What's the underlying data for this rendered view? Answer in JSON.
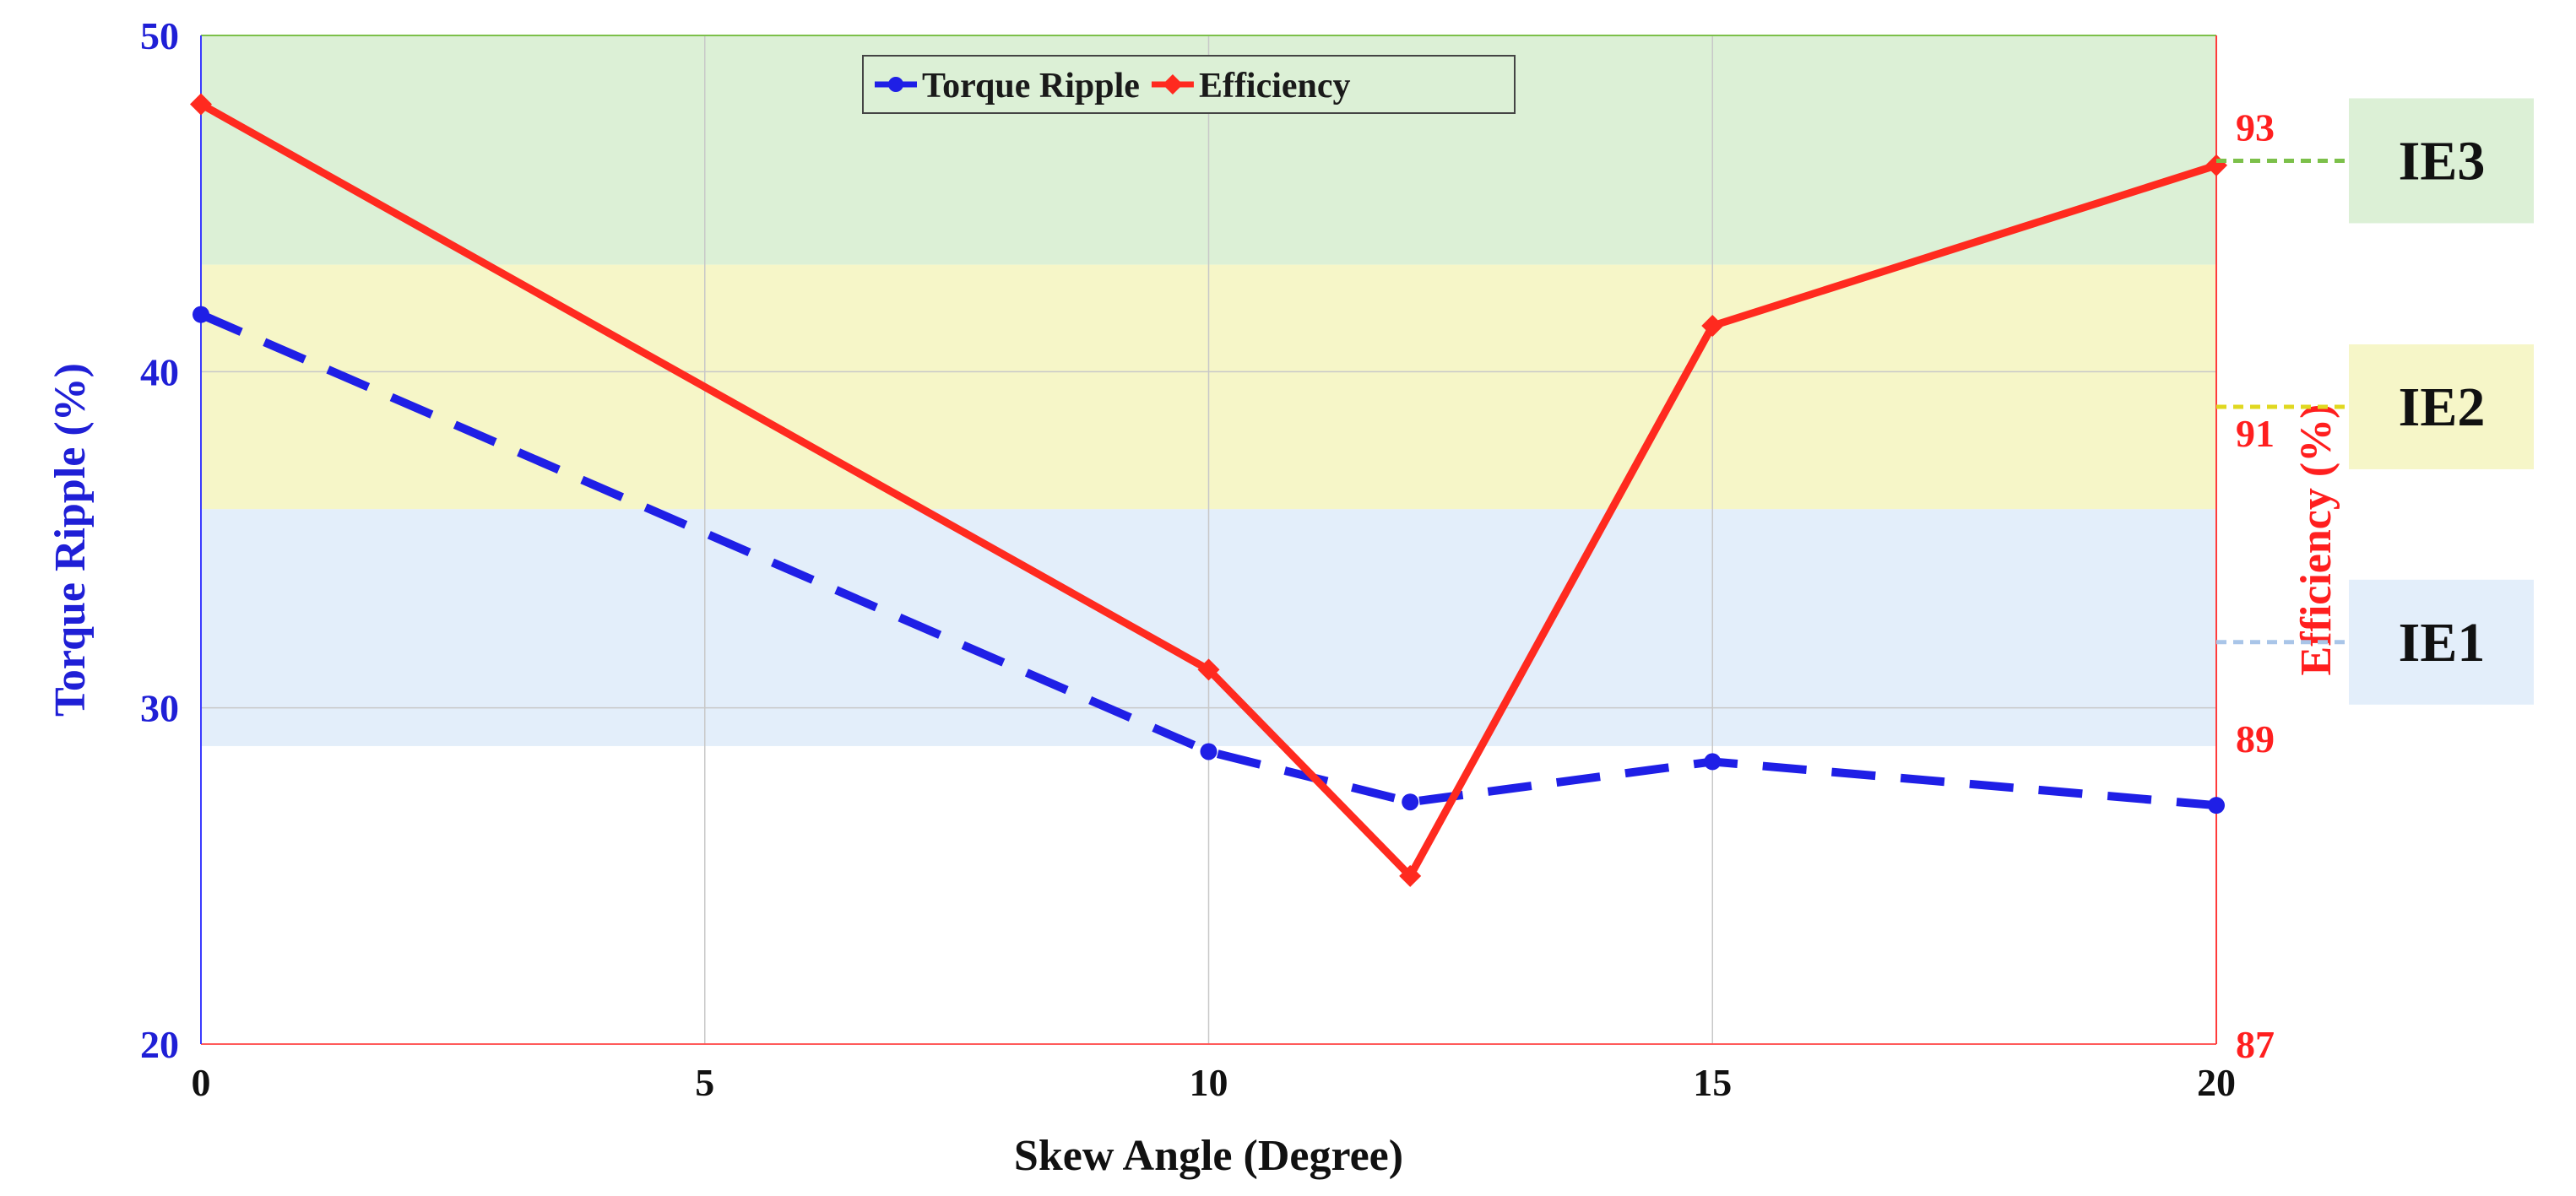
{
  "chart_data": {
    "type": "line",
    "title": "",
    "xlabel": "Skew Angle (Degree)",
    "xlim": [
      0,
      20
    ],
    "xticks": [
      0,
      5,
      10,
      15,
      20
    ],
    "x_tick_labels": [
      "0",
      "5",
      "10",
      "15",
      "20"
    ],
    "y_left": {
      "label": "Torque Ripple (%)",
      "lim": [
        20,
        50
      ],
      "ticks": [
        20,
        30,
        40,
        50
      ],
      "tick_labels": [
        "20",
        "30",
        "40",
        "50"
      ],
      "color": "#1f1fd6"
    },
    "y_right": {
      "label": "Efficiency (%)",
      "lim": [
        87,
        93.6
      ],
      "ticks": [
        87,
        89,
        91,
        93
      ],
      "tick_labels": [
        "87",
        "89",
        "91",
        "93"
      ],
      "color": "#ff1f1f"
    },
    "grid": true,
    "legend_position": "top-center",
    "series": [
      {
        "name": "Torque Ripple",
        "axis": "left",
        "color": "#1f1fe6",
        "style": "dashed",
        "marker": "circle",
        "x": [
          0,
          10,
          12,
          15,
          20
        ],
        "values": [
          41.7,
          28.7,
          27.2,
          28.4,
          27.1
        ]
      },
      {
        "name": "Efficiency",
        "axis": "right",
        "color": "#ff2a1f",
        "style": "solid",
        "marker": "diamond",
        "x": [
          0,
          10,
          12,
          15,
          20
        ],
        "values": [
          93.15,
          89.45,
          88.1,
          91.7,
          92.75
        ]
      }
    ],
    "efficiency_bands": [
      {
        "label": "IE3",
        "axis": "right",
        "from": 92.1,
        "to": 93.6,
        "fill": "#dcf0d6",
        "line": "#7cc04a",
        "marker_value": 92.78
      },
      {
        "label": "IE2",
        "axis": "right",
        "from": 90.5,
        "to": 92.1,
        "fill": "#f6f6c8",
        "line": "#e0d820",
        "marker_value": 91.17
      },
      {
        "label": "IE1",
        "axis": "right",
        "from": 88.95,
        "to": 90.5,
        "fill": "#e3eefa",
        "line": "#a9c5e8",
        "marker_value": 89.63
      }
    ]
  }
}
